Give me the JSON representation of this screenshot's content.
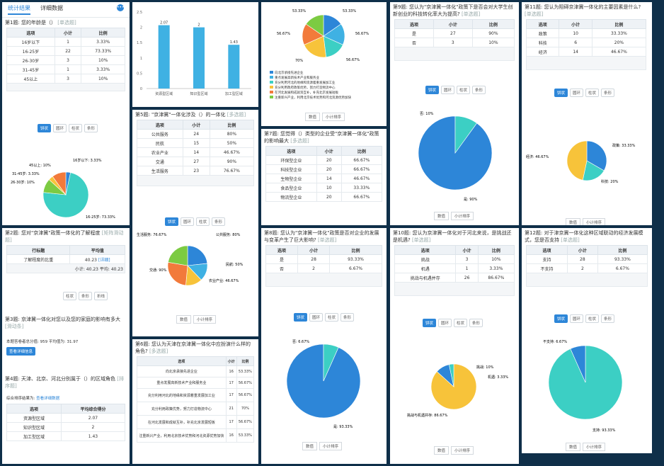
{
  "tabs": {
    "stats": "统计结果",
    "detail": "详细数据"
  },
  "q1": {
    "title": "第1题: 您的年龄是（）",
    "type": "[单选题]",
    "headers": [
      "选项",
      "小计",
      "比例"
    ],
    "rows": [
      [
        "16岁以下",
        "1",
        "3.33%"
      ],
      [
        "16-25岁",
        "22",
        "73.33%"
      ],
      [
        "26-30岁",
        "3",
        "10%"
      ],
      [
        "31-45岁",
        "1",
        "3.33%"
      ],
      [
        "45以上",
        "3",
        "10%"
      ]
    ],
    "buttons": [
      "饼状",
      "圆环",
      "柱状",
      "条形"
    ],
    "pie_labels": [
      "16岁以下: 3.33%",
      "16-25岁: 73.33%",
      "26-30岁: 10%",
      "31-45岁: 3.33%",
      "45以上: 10%"
    ],
    "pie_values": [
      3.33,
      73.33,
      10,
      3.33,
      10
    ]
  },
  "bar": {
    "chart_data": {
      "type": "bar",
      "categories": [
        "资源型区域",
        "知识型区域",
        "加工型区域"
      ],
      "values": [
        2.07,
        2,
        1.43
      ],
      "value_labels": [
        "2.07",
        "2",
        "1.43"
      ],
      "ytick_labels": [
        "2.5",
        "2",
        "1.5",
        "1",
        "0.5",
        "0"
      ],
      "ylim": [
        0,
        2.5
      ]
    }
  },
  "topPie": {
    "labels": [
      "53.33%",
      "56.67%",
      "56.67%",
      "70%",
      "56.67%",
      "53.33%"
    ],
    "legend": [
      "向北京承接先进企业",
      "重点发展高新技术产业和服务业",
      "充分利用河北的地缘和资源着重发展加工业",
      "充分利用政府政策优势，努力打造物流中心",
      "在河北发展和成就资互补，补充北京发展短板",
      "注重新兴产业，利用北京技术优势和河北资源优势加快"
    ],
    "values": [
      53.33,
      56.67,
      56.67,
      70,
      56.67,
      53.33
    ]
  },
  "footer": {
    "data": "数值",
    "sort": "小计排序"
  },
  "q9": {
    "title": "第9题: 您认为\"京津冀一体化\"政策下是否会对大学生创新创业的科技转化率大为提高?",
    "type": "[单选题]",
    "headers": [
      "选项",
      "小计",
      "比例"
    ],
    "rows": [
      [
        "是",
        "27",
        "90%"
      ],
      [
        "否",
        "3",
        "10%"
      ]
    ],
    "pie_labels": [
      "否: 10%",
      "是: 90%"
    ],
    "values": [
      10,
      90
    ]
  },
  "q11": {
    "title": "第11题: 您认为阻碍京津冀一体化的主要因素是什么?",
    "type": "[单选题]",
    "headers": [
      "选项",
      "小计",
      "比例"
    ],
    "rows": [
      [
        "政策",
        "10",
        "33.33%"
      ],
      [
        "科技",
        "6",
        "20%"
      ],
      [
        "经济",
        "14",
        "46.67%"
      ]
    ],
    "pie_labels": [
      "经济: 46.67%",
      "政策: 33.33%",
      "科技: 20%"
    ],
    "values": [
      33.33,
      20,
      46.67
    ]
  },
  "q5": {
    "title": "第5题: \"京津冀\"一体化涉及（）的一体化",
    "type": "[多选题]",
    "headers": [
      "选项",
      "小计",
      "比例"
    ],
    "rows": [
      [
        "公共服务",
        "24",
        "80%"
      ],
      [
        "民航",
        "15",
        "50%"
      ],
      [
        "农业产业",
        "14",
        "46.67%"
      ],
      [
        "交通",
        "27",
        "90%"
      ],
      [
        "生活服务",
        "23",
        "76.67%"
      ]
    ],
    "pie_labels": [
      "生活服务: 76.67%",
      "公共服务: 80%",
      "民航: 50%",
      "交通: 90%",
      "农业产业: 46.67%"
    ],
    "values": [
      80,
      50,
      46.67,
      90,
      76.67
    ]
  },
  "q7": {
    "title": "第7题: 您觉得（）类型的企业受\"京津冀一体化\"政策的影响最大",
    "type": "[多选题]",
    "headers": [
      "选项",
      "小计",
      "比例"
    ],
    "rows": [
      [
        "环保型企业",
        "20",
        "66.67%"
      ],
      [
        "科技型企业",
        "20",
        "66.67%"
      ],
      [
        "生物型企业",
        "14",
        "46.67%"
      ],
      [
        "食品型企业",
        "10",
        "33.33%"
      ],
      [
        "物流型企业",
        "20",
        "66.67%"
      ]
    ]
  },
  "q2": {
    "title": "第2题: 您对\"京津冀\"政策一体化的了解程度",
    "type": "[矩阵滑动题]",
    "headers": [
      "行标题",
      "平均值"
    ],
    "row_label": "了解程度的比重",
    "row_value": "40.23",
    "row_link": "[详细]",
    "summary": "小计: 40.23 平均: 40.23",
    "buttons": [
      "柱状",
      "条形",
      "折线"
    ]
  },
  "q3": {
    "title": "第3题: 京津冀一体化对您以及您的家庭的影响有多大",
    "type": "[滑动条]",
    "stat": "本题答卷者总分值: 959 平均值为: 31.97",
    "button": "查看详细信息"
  },
  "q4": {
    "title": "第4题: 天津、北京、河北分别属于（）的区域角色",
    "type": "[排序题]",
    "sub": "综合排序结果为:",
    "sub_link": "查看详细数据",
    "headers": [
      "选项",
      "平均综合得分"
    ],
    "rows": [
      [
        "资源型区域",
        "2.07"
      ],
      [
        "知识型区域",
        "2"
      ],
      [
        "加工型区域",
        "1.43"
      ]
    ]
  },
  "q6": {
    "title": "第6题: 您认为天津在京津冀一体化中应扮演什么样的角色?",
    "type": "[多选题]",
    "headers": [
      "选项",
      "小计",
      "比例"
    ],
    "rows": [
      [
        "向北京承接先进企业",
        "16",
        "53.33%"
      ],
      [
        "重点发展高新技术产业和服务业",
        "17",
        "56.67%"
      ],
      [
        "充分利用河北的地缘和资源着重发展加工业",
        "17",
        "56.67%"
      ],
      [
        "充分利用政策优势，努力打造物流中心",
        "21",
        "70%"
      ],
      [
        "在河北发展和成就互补，补充北京发展短板",
        "17",
        "56.67%"
      ],
      [
        "注重新兴产业，利用北京技术优势和河北资源优势加快",
        "16",
        "53.33%"
      ]
    ]
  },
  "q8": {
    "title": "第8题: 您认为\"京津冀一体化\"政策是否对企业的发展与变革产生了巨大影响?",
    "type": "[单选题]",
    "headers": [
      "选项",
      "小计",
      "比例"
    ],
    "rows": [
      [
        "是",
        "28",
        "93.33%"
      ],
      [
        "否",
        "2",
        "6.67%"
      ]
    ],
    "pie_labels": [
      "否: 6.67%",
      "是: 93.33%"
    ],
    "values": [
      6.67,
      93.33
    ]
  },
  "q10": {
    "title": "第10题: 您认为京津冀一体化对于河北来说，是挑战还是机遇?",
    "type": "[单选题]",
    "headers": [
      "选项",
      "小计",
      "比例"
    ],
    "rows": [
      [
        "挑战",
        "3",
        "10%"
      ],
      [
        "机遇",
        "1",
        "3.33%"
      ],
      [
        "挑战与机遇并存",
        "26",
        "86.67%"
      ]
    ],
    "pie_labels": [
      "挑战: 10%",
      "机遇: 3.33%",
      "挑战与机遇并存: 86.67%"
    ],
    "values": [
      10,
      3.33,
      86.67
    ]
  },
  "q12": {
    "title": "第12题: 对于津京冀一体化这种区域联动的经济发展模式，您是否支持",
    "type": "[单选题]",
    "headers": [
      "选项",
      "小计",
      "比例"
    ],
    "rows": [
      [
        "支持",
        "28",
        "93.33%"
      ],
      [
        "不支持",
        "2",
        "6.67%"
      ]
    ],
    "pie_labels": [
      "不支持: 6.67%",
      "支持: 93.33%"
    ],
    "values": [
      6.67,
      93.33
    ]
  },
  "colors": {
    "blue": "#2d86d8",
    "lightblue": "#3fb1e3",
    "teal": "#3ccfc4",
    "yellow": "#f7c33a",
    "orange": "#f27a3b",
    "green": "#7ccb42",
    "navy": "#37435a",
    "accent": "#2d86d8"
  }
}
